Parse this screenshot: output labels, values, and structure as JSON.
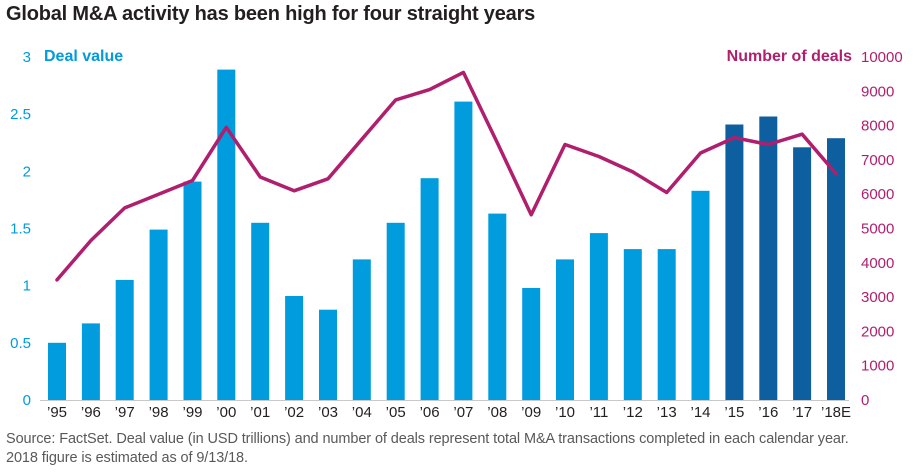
{
  "header": {
    "title": "Global M&A activity has been high for four straight years"
  },
  "left_axis": {
    "label": "Deal value",
    "ticks": [
      "0",
      "0.5",
      "1",
      "1.5",
      "2",
      "2.5",
      "3"
    ]
  },
  "right_axis": {
    "label": "Number of deals",
    "ticks": [
      "0",
      "1000",
      "2000",
      "3000",
      "4000",
      "5000",
      "6000",
      "7000",
      "8000",
      "9000",
      "10000"
    ]
  },
  "footer": {
    "line1": "Source: FactSet. Deal value (in USD trillions) and number of deals represent total M&A transactions completed in each calendar year.",
    "line2": "2018 figure is estimated as of 9/13/18."
  },
  "colors": {
    "deal_value_blue": "#009cde",
    "highlight_dark_blue": "#0e5fa0",
    "deals_magenta": "#b01e6e",
    "axis_line_gray": "#c8c9cb",
    "text_dark": "#231f20",
    "footer_gray": "#595959"
  },
  "chart_data": {
    "type": "bar+line combo",
    "title": "Global M&A activity has been high for four straight years",
    "categories": [
      "’95",
      "’96",
      "’97",
      "’98",
      "’99",
      "’00",
      "’01",
      "’02",
      "’03",
      "’04",
      "’05",
      "’06",
      "’07",
      "’08",
      "’09",
      "’10",
      "’11",
      "’12",
      "’13",
      "’14",
      "’15",
      "’16",
      "’17",
      "’18E"
    ],
    "series": [
      {
        "name": "Deal value",
        "type": "bar",
        "axis": "left",
        "units": "USD trillions",
        "values": [
          0.5,
          0.67,
          1.05,
          1.49,
          1.91,
          2.89,
          1.55,
          0.91,
          0.79,
          1.23,
          1.55,
          1.94,
          2.61,
          1.63,
          0.98,
          1.23,
          1.46,
          1.32,
          1.32,
          1.83,
          2.41,
          2.48,
          2.21,
          2.29
        ],
        "highlight_from_index": 20,
        "highlight_note": "2015-2018E bars shown in dark blue (four straight high years)"
      },
      {
        "name": "Number of deals",
        "type": "line",
        "axis": "right",
        "values": [
          3500,
          4650,
          5600,
          6000,
          6400,
          7950,
          6500,
          6100,
          6450,
          7600,
          8750,
          9050,
          9550,
          7500,
          5400,
          7450,
          7100,
          6650,
          6050,
          7200,
          7650,
          7450,
          7750,
          6600
        ]
      }
    ],
    "left_ylim": [
      0,
      3
    ],
    "right_ylim": [
      0,
      10000
    ],
    "grid": false,
    "legend_position": "axis titles: Deal value (top-left, blue), Number of deals (top-right, magenta)"
  }
}
